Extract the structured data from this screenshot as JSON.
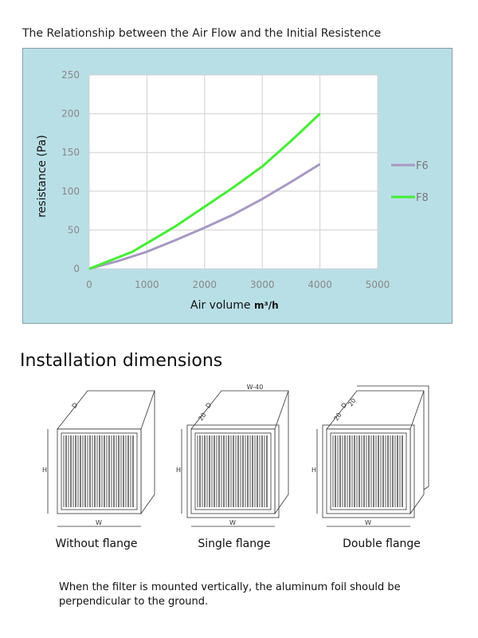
{
  "chart_data": {
    "type": "line",
    "title": "The Relationship between the Air Flow and the Initial Resistence",
    "xlabel": "Air volume",
    "xlabel_unit": "m³/h",
    "ylabel": "resistance (Pa)",
    "xlim": [
      0,
      5000
    ],
    "ylim": [
      0,
      250
    ],
    "xticks": [
      0,
      1000,
      2000,
      3000,
      4000,
      5000
    ],
    "yticks": [
      0,
      50,
      100,
      150,
      200,
      250
    ],
    "grid": true,
    "legend_position": "right",
    "series": [
      {
        "name": "F6",
        "color": "#a898c4",
        "x": [
          0,
          500,
          1000,
          1500,
          2000,
          2500,
          3000,
          3500,
          4000
        ],
        "y": [
          0,
          10,
          22,
          37,
          53,
          70,
          90,
          112,
          135
        ]
      },
      {
        "name": "F8",
        "color": "#44ee33",
        "x": [
          0,
          750,
          1000,
          1500,
          2000,
          2500,
          3000,
          3500,
          4000
        ],
        "y": [
          0,
          22,
          33,
          55,
          80,
          105,
          132,
          165,
          200
        ]
      }
    ]
  },
  "section_title": "Installation dimensions",
  "diagrams": [
    {
      "caption": "Without flange",
      "labels": [
        "D",
        "H",
        "W"
      ]
    },
    {
      "caption": "Single flange",
      "labels": [
        "D",
        "20",
        "H",
        "W",
        "W-40"
      ]
    },
    {
      "caption": "Double flange",
      "labels": [
        "D",
        "20",
        "20",
        "H",
        "W"
      ]
    }
  ],
  "note": "When the filter is mounted vertically, the aluminum foil should be perpendicular to the ground."
}
